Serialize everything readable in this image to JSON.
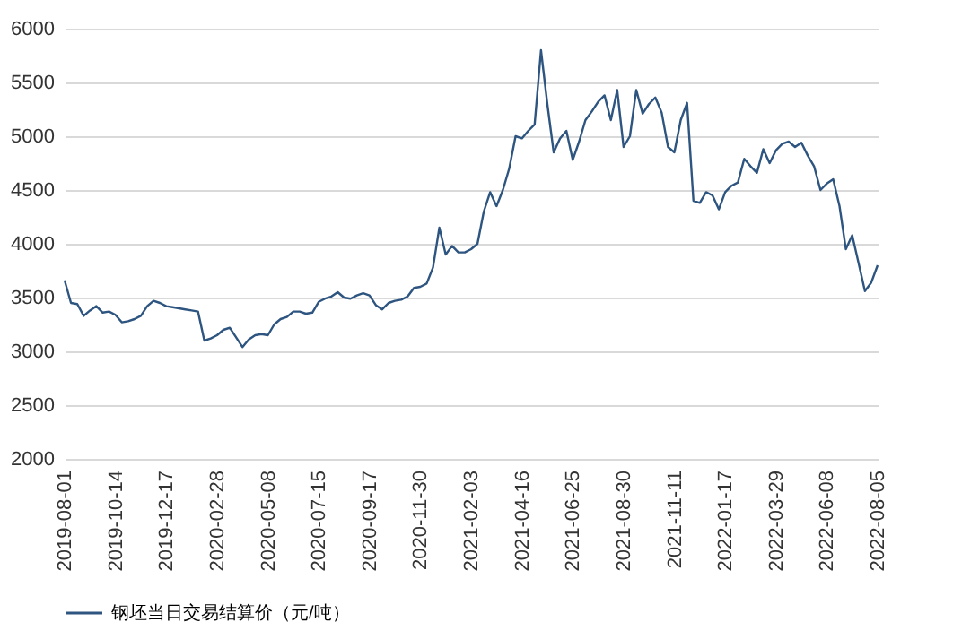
{
  "chart_data": {
    "type": "line",
    "categories": [
      "2019-08-01",
      null,
      null,
      null,
      null,
      null,
      null,
      null,
      "2019-10-14",
      null,
      null,
      null,
      null,
      null,
      null,
      null,
      "2019-12-17",
      null,
      null,
      null,
      null,
      null,
      null,
      null,
      "2020-02-28",
      null,
      null,
      null,
      null,
      null,
      null,
      null,
      "2020-05-08",
      null,
      null,
      null,
      null,
      null,
      null,
      null,
      "2020-07-15",
      null,
      null,
      null,
      null,
      null,
      null,
      null,
      "2020-09-17",
      null,
      null,
      null,
      null,
      null,
      null,
      null,
      "2020-11-30",
      null,
      null,
      null,
      null,
      null,
      null,
      null,
      "2021-02-03",
      null,
      null,
      null,
      null,
      null,
      null,
      null,
      "2021-04-16",
      null,
      null,
      null,
      null,
      null,
      null,
      null,
      "2021-06-25",
      null,
      null,
      null,
      null,
      null,
      null,
      null,
      "2021-08-30",
      null,
      null,
      null,
      null,
      null,
      null,
      null,
      "2021-11-11",
      null,
      null,
      null,
      null,
      null,
      null,
      null,
      "2022-01-17",
      null,
      null,
      null,
      null,
      null,
      null,
      null,
      "2022-03-29",
      null,
      null,
      null,
      null,
      null,
      null,
      null,
      "2022-06-08",
      null,
      null,
      null,
      null,
      null,
      null,
      null,
      "2022-08-05"
    ],
    "series": [
      {
        "name": "钢坯当日交易结算价（元/吨）",
        "color": "#2e5580",
        "values": [
          3660,
          3450,
          3440,
          3330,
          3380,
          3420,
          3360,
          3370,
          3340,
          3270,
          3280,
          3300,
          3330,
          3420,
          3470,
          3450,
          3420,
          3410,
          3400,
          3390,
          3380,
          3370,
          3100,
          3120,
          3150,
          3200,
          3220,
          3130,
          3040,
          3110,
          3150,
          3160,
          3150,
          3250,
          3300,
          3320,
          3370,
          3370,
          3350,
          3360,
          3460,
          3490,
          3510,
          3550,
          3500,
          3490,
          3520,
          3540,
          3520,
          3430,
          3390,
          3450,
          3470,
          3480,
          3510,
          3590,
          3600,
          3630,
          3780,
          4150,
          3900,
          3980,
          3920,
          3920,
          3950,
          4000,
          4300,
          4480,
          4350,
          4500,
          4700,
          5000,
          4980,
          5050,
          5110,
          5800,
          5300,
          4850,
          4980,
          5050,
          4780,
          4950,
          5150,
          5230,
          5320,
          5380,
          5150,
          5430,
          4900,
          5000,
          5430,
          5210,
          5300,
          5360,
          5220,
          4900,
          4850,
          5150,
          5310,
          4400,
          4380,
          4480,
          4450,
          4320,
          4480,
          4540,
          4570,
          4790,
          4720,
          4660,
          4880,
          4750,
          4870,
          4930,
          4950,
          4900,
          4940,
          4820,
          4720,
          4500,
          4560,
          4600,
          4350,
          3950,
          4080,
          3820,
          3560,
          3640,
          3800
        ]
      }
    ],
    "ylim": [
      2000,
      6000
    ],
    "yticks": [
      2000,
      2500,
      3000,
      3500,
      4000,
      4500,
      5000,
      5500,
      6000
    ],
    "grid": "y",
    "legend": "bottom",
    "marker": "none",
    "line_style": "solid"
  }
}
